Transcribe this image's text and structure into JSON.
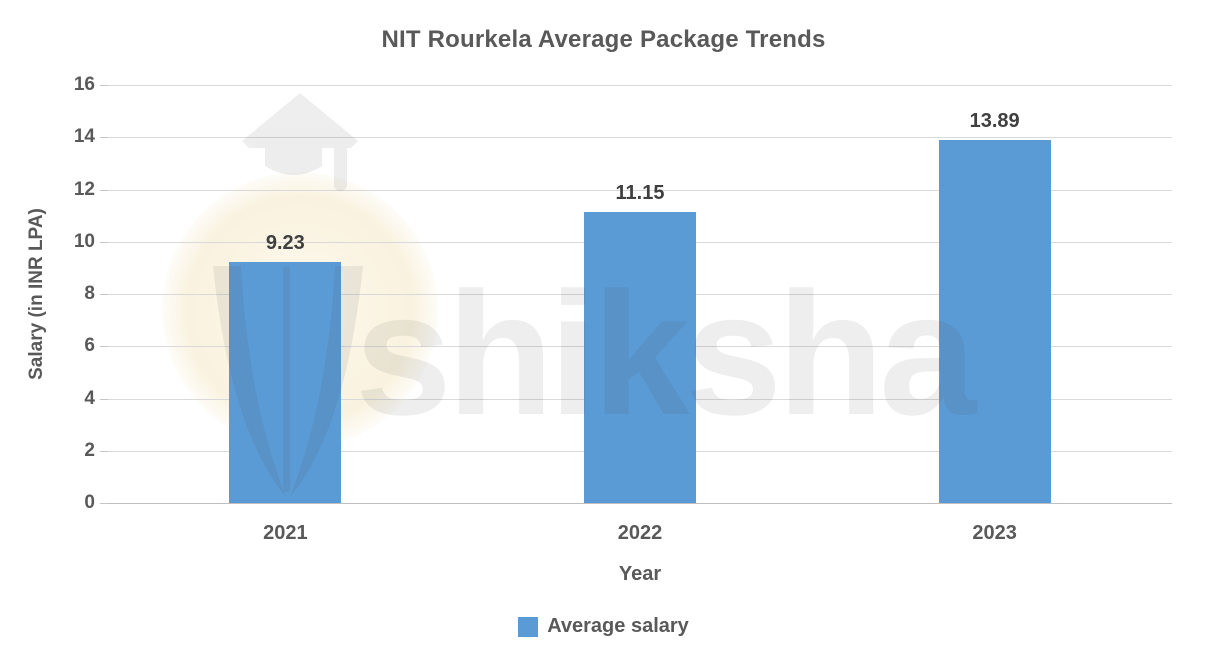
{
  "title": "NIT Rourkela Average Package Trends",
  "watermark": {
    "brand": "shiksha",
    "icon": "graduation-cap-icon"
  },
  "chart_data": {
    "type": "bar",
    "categories": [
      "2021",
      "2022",
      "2023"
    ],
    "series": [
      {
        "name": "Average salary",
        "values": [
          9.23,
          11.15,
          13.89
        ]
      }
    ],
    "data_labels": [
      "9.23",
      "11.15",
      "13.89"
    ],
    "title": "NIT Rourkela Average Package Trends",
    "xlabel": "Year",
    "ylabel": "Salary (in INR LPA)",
    "ylim": [
      0,
      16
    ],
    "yticks": [
      0,
      2,
      4,
      6,
      8,
      10,
      12,
      14,
      16
    ],
    "grid": true,
    "legend_position": "bottom",
    "bar_color": "#5b9bd5"
  },
  "legend": {
    "items": [
      {
        "label": "Average salary",
        "color": "#5b9bd5"
      }
    ]
  },
  "colors": {
    "bar": "#5b9bd5",
    "gridline": "#d9d9d9",
    "axis_line": "#bfbfbf",
    "text": "#595959",
    "data_label": "#3f3f3f",
    "watermark_gray": "#3d3d3d",
    "watermark_cream": "#f8f0da",
    "background": "#ffffff"
  }
}
